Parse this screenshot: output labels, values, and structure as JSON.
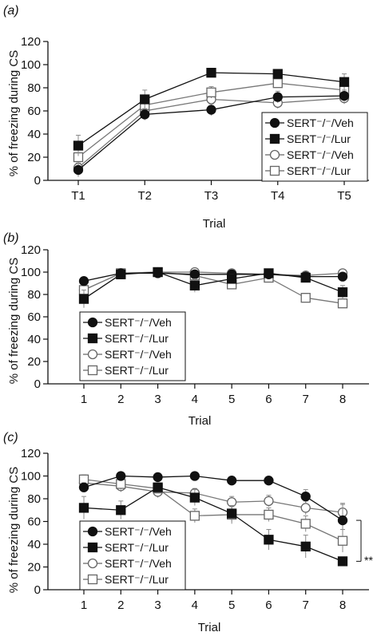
{
  "panels": [
    {
      "label": "(a)",
      "ylabel": "% of freezing during CS",
      "xlabel": "Trial",
      "annotation": ""
    },
    {
      "label": "(b)",
      "ylabel": "% of freezing during CS",
      "xlabel": "Trial",
      "annotation": ""
    },
    {
      "label": "(c)",
      "ylabel": "% of freezing during CS",
      "xlabel": "Trial",
      "annotation": "**"
    }
  ],
  "chart_data": [
    {
      "type": "line",
      "categories": [
        "T1",
        "T2",
        "T3",
        "T4",
        "T5"
      ],
      "ylim": [
        0,
        120
      ],
      "yticks": [
        0,
        20,
        40,
        60,
        80,
        100,
        120
      ],
      "xlabel": "Trial",
      "ylabel": "% of freezing during CS",
      "legend_position": "bottom-right",
      "series": [
        {
          "name": "SERT⁻/⁻/Veh",
          "marker": "circle",
          "fill": "#111111",
          "values": [
            9,
            57,
            61,
            72,
            73
          ],
          "errors": [
            6,
            5,
            5,
            5,
            5
          ]
        },
        {
          "name": "SERT⁻/⁻/Lur",
          "marker": "square",
          "fill": "#111111",
          "values": [
            30,
            70,
            93,
            92,
            85
          ],
          "errors": [
            9,
            8,
            2,
            3,
            7
          ]
        },
        {
          "name": "SERT⁻/⁻/Veh",
          "marker": "circle",
          "fill": "#ffffff",
          "values": [
            11,
            60,
            70,
            67,
            71
          ],
          "errors": [
            7,
            5,
            5,
            5,
            5
          ]
        },
        {
          "name": "SERT⁻/⁻/Lur",
          "marker": "square",
          "fill": "#ffffff",
          "values": [
            20,
            65,
            76,
            84,
            78
          ],
          "errors": [
            7,
            6,
            5,
            4,
            6
          ]
        }
      ]
    },
    {
      "type": "line",
      "categories": [
        "1",
        "2",
        "3",
        "4",
        "5",
        "6",
        "7",
        "8"
      ],
      "ylim": [
        0,
        120
      ],
      "yticks": [
        0,
        20,
        40,
        60,
        80,
        100,
        120
      ],
      "xlabel": "Trial",
      "ylabel": "% of freezing during CS",
      "legend_position": "bottom-left",
      "series": [
        {
          "name": "SERT⁻/⁻/Veh",
          "marker": "circle",
          "fill": "#111111",
          "values": [
            92,
            99,
            99,
            98,
            98,
            98,
            96,
            96
          ],
          "errors": [
            3,
            1,
            1,
            1,
            1,
            1,
            2,
            2
          ]
        },
        {
          "name": "SERT⁻/⁻/Lur",
          "marker": "square",
          "fill": "#111111",
          "values": [
            76,
            98,
            100,
            88,
            94,
            99,
            95,
            82
          ],
          "errors": [
            8,
            1,
            1,
            6,
            4,
            1,
            3,
            6
          ]
        },
        {
          "name": "SERT⁻/⁻/Veh",
          "marker": "circle",
          "fill": "#ffffff",
          "values": [
            84,
            99,
            100,
            100,
            99,
            98,
            97,
            99
          ],
          "errors": [
            5,
            1,
            1,
            1,
            1,
            1,
            2,
            1
          ]
        },
        {
          "name": "SERT⁻/⁻/Lur",
          "marker": "square",
          "fill": "#ffffff",
          "values": [
            84,
            99,
            100,
            97,
            89,
            95,
            77,
            72
          ],
          "errors": [
            6,
            1,
            1,
            2,
            4,
            3,
            4,
            4
          ]
        }
      ]
    },
    {
      "type": "line",
      "categories": [
        "1",
        "2",
        "3",
        "4",
        "5",
        "6",
        "7",
        "8"
      ],
      "ylim": [
        0,
        120
      ],
      "yticks": [
        0,
        20,
        40,
        60,
        80,
        100,
        120
      ],
      "xlabel": "Trial",
      "ylabel": "% of freezing during CS",
      "legend_position": "bottom-left",
      "series": [
        {
          "name": "SERT⁻/⁻/Veh",
          "marker": "circle",
          "fill": "#111111",
          "values": [
            90,
            100,
            99,
            100,
            96,
            96,
            82,
            61
          ],
          "errors": [
            4,
            1,
            1,
            1,
            3,
            3,
            6,
            14
          ]
        },
        {
          "name": "SERT⁻/⁻/Lur",
          "marker": "square",
          "fill": "#111111",
          "values": [
            72,
            70,
            90,
            81,
            67,
            44,
            38,
            25
          ],
          "errors": [
            10,
            8,
            4,
            7,
            7,
            9,
            10,
            3
          ]
        },
        {
          "name": "SERT⁻/⁻/Veh",
          "marker": "circle",
          "fill": "#ffffff",
          "values": [
            94,
            91,
            86,
            85,
            77,
            78,
            72,
            68
          ],
          "errors": [
            5,
            5,
            5,
            4,
            5,
            5,
            6,
            8
          ]
        },
        {
          "name": "SERT⁻/⁻/Lur",
          "marker": "square",
          "fill": "#ffffff",
          "values": [
            97,
            93,
            89,
            65,
            66,
            66,
            58,
            43
          ],
          "errors": [
            4,
            5,
            4,
            6,
            8,
            6,
            7,
            10
          ]
        }
      ]
    }
  ]
}
